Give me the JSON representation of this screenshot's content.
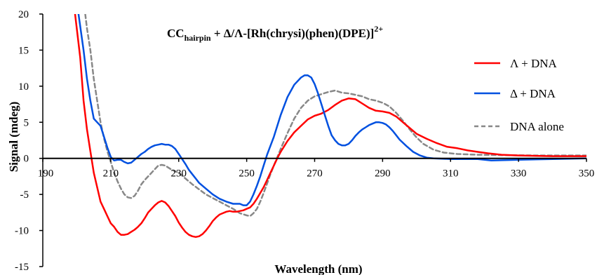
{
  "chart_data": {
    "type": "line",
    "title": {
      "main": "CC",
      "subscript": "hairpin",
      "rest": " + Δ/Λ-[Rh(chrysi)(phen)(DPE)]",
      "superscript": "2+"
    },
    "xlabel": "Wavelength (nm)",
    "ylabel": "Signal (mdeg)",
    "xlim": [
      190,
      350
    ],
    "ylim": [
      -15,
      20
    ],
    "xticks": [
      "190",
      "210",
      "230",
      "250",
      "270",
      "290",
      "310",
      "330",
      "350"
    ],
    "yticks": [
      "20",
      "15",
      "10",
      "5",
      "0",
      "-5",
      "-10",
      "-15"
    ],
    "legend_position": "top-right",
    "series": [
      {
        "name": "Λ + DNA",
        "color": "#ff0000",
        "style": "solid",
        "points": [
          [
            199.5,
            20
          ],
          [
            201,
            14
          ],
          [
            202,
            8
          ],
          [
            203,
            4
          ],
          [
            204,
            1
          ],
          [
            205,
            -2
          ],
          [
            206,
            -4
          ],
          [
            207,
            -6
          ],
          [
            208,
            -7
          ],
          [
            209,
            -8
          ],
          [
            210,
            -9
          ],
          [
            211,
            -9.5
          ],
          [
            212,
            -10.2
          ],
          [
            213,
            -10.6
          ],
          [
            214,
            -10.6
          ],
          [
            215,
            -10.5
          ],
          [
            216,
            -10.2
          ],
          [
            217,
            -9.9
          ],
          [
            218,
            -9.5
          ],
          [
            219,
            -9
          ],
          [
            220,
            -8.3
          ],
          [
            221,
            -7.5
          ],
          [
            222,
            -7
          ],
          [
            223,
            -6.5
          ],
          [
            224,
            -6.1
          ],
          [
            225,
            -5.9
          ],
          [
            226,
            -6.1
          ],
          [
            227,
            -6.6
          ],
          [
            228,
            -7.3
          ],
          [
            229,
            -8
          ],
          [
            230,
            -8.9
          ],
          [
            231,
            -9.6
          ],
          [
            232,
            -10.2
          ],
          [
            233,
            -10.6
          ],
          [
            234,
            -10.8
          ],
          [
            235,
            -10.9
          ],
          [
            236,
            -10.8
          ],
          [
            237,
            -10.5
          ],
          [
            238,
            -10
          ],
          [
            239,
            -9.4
          ],
          [
            240,
            -8.7
          ],
          [
            241,
            -8.2
          ],
          [
            242,
            -7.8
          ],
          [
            243,
            -7.6
          ],
          [
            244,
            -7.4
          ],
          [
            245,
            -7.3
          ],
          [
            246,
            -7.4
          ],
          [
            247,
            -7.4
          ],
          [
            248,
            -7.3
          ],
          [
            249,
            -7.2
          ],
          [
            250,
            -7
          ],
          [
            251,
            -6.8
          ],
          [
            252,
            -6.3
          ],
          [
            253,
            -5.6
          ],
          [
            254,
            -4.8
          ],
          [
            255,
            -4
          ],
          [
            256,
            -3
          ],
          [
            257,
            -2
          ],
          [
            258,
            -1
          ],
          [
            259,
            0
          ],
          [
            260,
            0.9
          ],
          [
            262,
            2.4
          ],
          [
            264,
            3.6
          ],
          [
            266,
            4.5
          ],
          [
            268,
            5.4
          ],
          [
            270,
            5.9
          ],
          [
            272,
            6.2
          ],
          [
            274,
            6.7
          ],
          [
            276,
            7.4
          ],
          [
            278,
            8
          ],
          [
            280,
            8.3
          ],
          [
            282,
            8.2
          ],
          [
            284,
            7.6
          ],
          [
            286,
            7
          ],
          [
            288,
            6.6
          ],
          [
            290,
            6.5
          ],
          [
            292,
            6.3
          ],
          [
            294,
            5.8
          ],
          [
            296,
            5
          ],
          [
            298,
            4.2
          ],
          [
            300,
            3.4
          ],
          [
            303,
            2.7
          ],
          [
            306,
            2.1
          ],
          [
            309,
            1.6
          ],
          [
            312,
            1.4
          ],
          [
            315,
            1.1
          ],
          [
            318,
            0.9
          ],
          [
            321,
            0.7
          ],
          [
            325,
            0.5
          ],
          [
            330,
            0.4
          ],
          [
            340,
            0.3
          ],
          [
            350,
            0.3
          ]
        ]
      },
      {
        "name": "Δ + DNA",
        "color": "#0050e0",
        "style": "solid",
        "points": [
          [
            200.5,
            20
          ],
          [
            202,
            15
          ],
          [
            203,
            11
          ],
          [
            204,
            8
          ],
          [
            205,
            5.5
          ],
          [
            206,
            5
          ],
          [
            207,
            4.5
          ],
          [
            208,
            3
          ],
          [
            209,
            1.5
          ],
          [
            210,
            0.2
          ],
          [
            211,
            -0.3
          ],
          [
            212,
            -0.2
          ],
          [
            213,
            -0.2
          ],
          [
            214,
            -0.5
          ],
          [
            215,
            -0.7
          ],
          [
            216,
            -0.6
          ],
          [
            217,
            -0.2
          ],
          [
            218,
            0.2
          ],
          [
            219,
            0.6
          ],
          [
            220,
            0.9
          ],
          [
            221,
            1.3
          ],
          [
            222,
            1.6
          ],
          [
            223,
            1.8
          ],
          [
            224,
            1.9
          ],
          [
            225,
            2
          ],
          [
            226,
            1.9
          ],
          [
            227,
            1.9
          ],
          [
            228,
            1.7
          ],
          [
            229,
            1.3
          ],
          [
            230,
            0.6
          ],
          [
            231,
            -0.1
          ],
          [
            232,
            -0.8
          ],
          [
            233,
            -1.6
          ],
          [
            234,
            -2.2
          ],
          [
            235,
            -2.8
          ],
          [
            236,
            -3.4
          ],
          [
            238,
            -4.2
          ],
          [
            240,
            -5
          ],
          [
            242,
            -5.6
          ],
          [
            244,
            -6
          ],
          [
            246,
            -6.3
          ],
          [
            248,
            -6.3
          ],
          [
            249,
            -6.5
          ],
          [
            250,
            -6.5
          ],
          [
            251,
            -6
          ],
          [
            252,
            -5
          ],
          [
            253,
            -3.8
          ],
          [
            254,
            -2.5
          ],
          [
            255,
            -1
          ],
          [
            256,
            0.5
          ],
          [
            258,
            3
          ],
          [
            260,
            6
          ],
          [
            262,
            8.5
          ],
          [
            264,
            10.2
          ],
          [
            266,
            11.2
          ],
          [
            267,
            11.5
          ],
          [
            268,
            11.5
          ],
          [
            269,
            11.2
          ],
          [
            270,
            10.3
          ],
          [
            271,
            9
          ],
          [
            272,
            7.5
          ],
          [
            273,
            6
          ],
          [
            274,
            4.5
          ],
          [
            275,
            3.2
          ],
          [
            276,
            2.5
          ],
          [
            277,
            2
          ],
          [
            278,
            1.8
          ],
          [
            279,
            1.8
          ],
          [
            280,
            2
          ],
          [
            281,
            2.5
          ],
          [
            282,
            3.1
          ],
          [
            283,
            3.6
          ],
          [
            284,
            4
          ],
          [
            285,
            4.3
          ],
          [
            286,
            4.6
          ],
          [
            287,
            4.8
          ],
          [
            288,
            5
          ],
          [
            289,
            5
          ],
          [
            290,
            4.9
          ],
          [
            291,
            4.7
          ],
          [
            292,
            4.3
          ],
          [
            293,
            3.8
          ],
          [
            294,
            3.2
          ],
          [
            295,
            2.6
          ],
          [
            297,
            1.7
          ],
          [
            299,
            0.9
          ],
          [
            301,
            0.4
          ],
          [
            303,
            0.1
          ],
          [
            305,
            0
          ],
          [
            310,
            -0.1
          ],
          [
            318,
            -0.1
          ],
          [
            322,
            -0.3
          ],
          [
            330,
            -0.2
          ],
          [
            340,
            -0.1
          ],
          [
            350,
            0
          ]
        ]
      },
      {
        "name": "DNA alone",
        "color": "#888888",
        "style": "dashed",
        "points": [
          [
            202.5,
            20
          ],
          [
            203,
            18
          ],
          [
            204,
            15
          ],
          [
            205,
            11
          ],
          [
            206,
            8
          ],
          [
            207,
            5
          ],
          [
            208,
            2.8
          ],
          [
            209,
            1
          ],
          [
            210,
            -0.5
          ],
          [
            211,
            -2
          ],
          [
            212,
            -3.2
          ],
          [
            213,
            -4.2
          ],
          [
            214,
            -5
          ],
          [
            215,
            -5.4
          ],
          [
            216,
            -5.5
          ],
          [
            217,
            -5.2
          ],
          [
            218,
            -4.5
          ],
          [
            219,
            -3.6
          ],
          [
            220,
            -3
          ],
          [
            221,
            -2.5
          ],
          [
            222,
            -2
          ],
          [
            223,
            -1.5
          ],
          [
            224,
            -1
          ],
          [
            225,
            -0.9
          ],
          [
            226,
            -1
          ],
          [
            227,
            -1.3
          ],
          [
            228,
            -1.6
          ],
          [
            229,
            -1.8
          ],
          [
            230,
            -2
          ],
          [
            232,
            -2.8
          ],
          [
            234,
            -3.6
          ],
          [
            236,
            -4.3
          ],
          [
            238,
            -5
          ],
          [
            240,
            -5.5
          ],
          [
            242,
            -6
          ],
          [
            244,
            -6.5
          ],
          [
            246,
            -7
          ],
          [
            248,
            -7.6
          ],
          [
            250,
            -7.9
          ],
          [
            251,
            -8
          ],
          [
            252,
            -7.6
          ],
          [
            253,
            -7
          ],
          [
            254,
            -6
          ],
          [
            255,
            -4.8
          ],
          [
            256,
            -3.5
          ],
          [
            257,
            -2.2
          ],
          [
            258,
            -1
          ],
          [
            260,
            1.3
          ],
          [
            262,
            3.5
          ],
          [
            264,
            5.5
          ],
          [
            266,
            7
          ],
          [
            268,
            8
          ],
          [
            270,
            8.6
          ],
          [
            272,
            8.9
          ],
          [
            274,
            9.2
          ],
          [
            276,
            9.4
          ],
          [
            278,
            9.1
          ],
          [
            280,
            9
          ],
          [
            282,
            8.8
          ],
          [
            284,
            8.6
          ],
          [
            286,
            8.2
          ],
          [
            288,
            8
          ],
          [
            290,
            7.7
          ],
          [
            292,
            7.2
          ],
          [
            294,
            6.3
          ],
          [
            296,
            5.2
          ],
          [
            298,
            4
          ],
          [
            300,
            2.9
          ],
          [
            302,
            2
          ],
          [
            305,
            1.2
          ],
          [
            308,
            0.8
          ],
          [
            312,
            0.6
          ],
          [
            318,
            0.5
          ],
          [
            325,
            0.45
          ],
          [
            335,
            0.4
          ],
          [
            350,
            0.4
          ]
        ]
      }
    ]
  }
}
